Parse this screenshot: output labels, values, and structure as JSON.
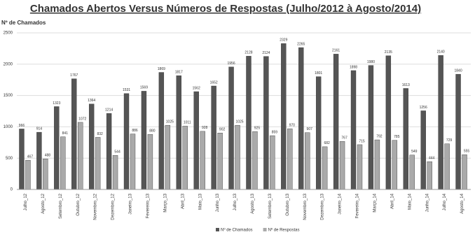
{
  "chart_data": {
    "type": "bar",
    "title": "Chamados Abertos Versus Números de Respostas (Julho/2012 à Agosto/2014)",
    "y_label": "Nº de Chamados",
    "categories": [
      "Julho_12",
      "Agosto_12",
      "Setembro_12",
      "Outubro_12",
      "Novembro_12",
      "Dezembro_12",
      "Janeiro_13",
      "Fevereiro_13",
      "Março_13",
      "Abril_13",
      "Maio_13",
      "Junho_13",
      "Julho_13",
      "Agosto_13",
      "Setembro_13",
      "Outubro_13",
      "Novembro_13",
      "Dezembro_13",
      "Janeiro_14",
      "Fevereiro_14",
      "Março_14",
      "Abril_14",
      "Maio_14",
      "Junho_14",
      "Julho_14",
      "Agosto_14"
    ],
    "series": [
      {
        "name": "Nº de Chamados",
        "color": "#555555",
        "values": [
          966,
          914,
          1323,
          1767,
          1364,
          1214,
          1531,
          1569,
          1869,
          1817,
          1562,
          1652,
          1956,
          2128,
          2124,
          2329,
          2265,
          1801,
          2161,
          1898,
          1980,
          2135,
          1613,
          1256,
          2140,
          1840
        ]
      },
      {
        "name": "Nº de Respostas",
        "color": "#aaaaaa",
        "values": [
          467,
          488,
          841,
          1072,
          832,
          544,
          886,
          880,
          1025,
          1011,
          928,
          902,
          1025,
          925,
          859,
          970,
          907,
          682,
          767,
          715,
          792,
          785,
          549,
          444,
          729,
          555
        ]
      }
    ],
    "ylim": [
      0,
      2500
    ],
    "yticks": [
      0,
      500,
      1000,
      1500,
      2000,
      2500
    ],
    "grid": true,
    "legend": "bottom"
  }
}
